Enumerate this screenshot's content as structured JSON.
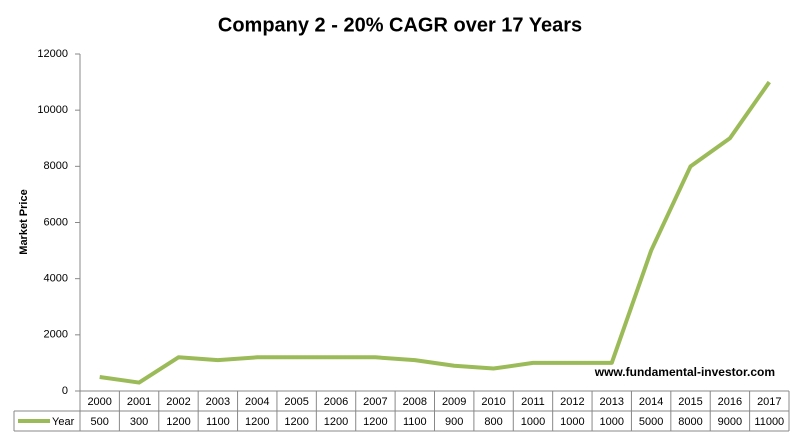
{
  "chart_data": {
    "type": "line",
    "title": "Company 2 - 20% CAGR over 17 Years",
    "y_label": "Market Price",
    "annotation": "www.fundamental-investor.com",
    "categories": [
      "2000",
      "2001",
      "2002",
      "2003",
      "2004",
      "2005",
      "2006",
      "2007",
      "2008",
      "2009",
      "2010",
      "2011",
      "2012",
      "2013",
      "2014",
      "2015",
      "2016",
      "2017"
    ],
    "series": [
      {
        "name": "Year",
        "color": "#9bbb59",
        "values": [
          500,
          300,
          1200,
          1100,
          1200,
          1200,
          1200,
          1200,
          1100,
          900,
          800,
          1000,
          1000,
          1000,
          5000,
          8000,
          9000,
          11000
        ]
      }
    ],
    "ylim": [
      0,
      12000
    ],
    "yticks": [
      0,
      2000,
      4000,
      6000,
      8000,
      10000,
      12000
    ],
    "grid": false,
    "data_table": true
  }
}
